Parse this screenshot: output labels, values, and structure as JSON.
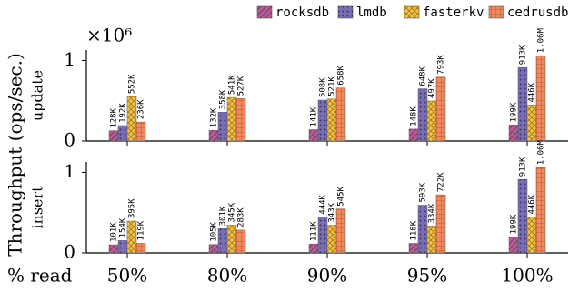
{
  "chart_data": [
    {
      "type": "bar",
      "ylabel": "Throughput (ops/sec.)",
      "subtitle": "update",
      "offset_label": "×10⁶",
      "ylim": [
        0,
        1130000
      ],
      "yticks": [
        0,
        {
          "value": 1000000,
          "label": "1"
        }
      ],
      "series": [
        {
          "name": "rocksdb",
          "color": "#b65c95",
          "values": [
            128000,
            132000,
            141000,
            148000,
            199000
          ],
          "value_labels": [
            "128K",
            "132K",
            "141K",
            "148K",
            "199K"
          ]
        },
        {
          "name": "lmdb",
          "color": "#7a6db5",
          "values": [
            192000,
            358000,
            508000,
            648000,
            913000
          ],
          "value_labels": [
            "192K",
            "358K",
            "508K",
            "648K",
            "913K"
          ]
        },
        {
          "name": "fasterkv",
          "color": "#f2c14e",
          "values": [
            552000,
            541000,
            521000,
            497000,
            446000
          ],
          "value_labels": [
            "552K",
            "541K",
            "521K",
            "497K",
            "446K"
          ]
        },
        {
          "name": "cedrusdb",
          "color": "#ef8a60",
          "values": [
            236000,
            527000,
            658000,
            793000,
            1060000
          ],
          "value_labels": [
            "236K",
            "527K",
            "658K",
            "793K",
            "1.06M"
          ]
        }
      ]
    },
    {
      "type": "bar",
      "subtitle": "insert",
      "xlabel": "% read",
      "categories": [
        "50%",
        "80%",
        "90%",
        "95%",
        "100%"
      ],
      "ylim": [
        0,
        1130000
      ],
      "yticks": [
        0,
        {
          "value": 1000000,
          "label": "1"
        }
      ],
      "series": [
        {
          "color": "#b65c95",
          "values": [
            101000,
            105000,
            111000,
            118000,
            199000
          ],
          "value_labels": [
            "101K",
            "105K",
            "111K",
            "118K",
            "199K"
          ]
        },
        {
          "color": "#7a6db5",
          "values": [
            154000,
            301000,
            444000,
            593000,
            913000
          ],
          "value_labels": [
            "154K",
            "301K",
            "444K",
            "593K",
            "913K"
          ]
        },
        {
          "color": "#f2c14e",
          "values": [
            395000,
            345000,
            343000,
            334000,
            446000
          ],
          "value_labels": [
            "395K",
            "345K",
            "343K",
            "334K",
            "446K"
          ]
        },
        {
          "color": "#ef8a60",
          "values": [
            119000,
            283000,
            545000,
            722000,
            1060000
          ],
          "value_labels": [
            "119K",
            "283K",
            "545K",
            "722K",
            "1.06M"
          ]
        }
      ]
    }
  ]
}
